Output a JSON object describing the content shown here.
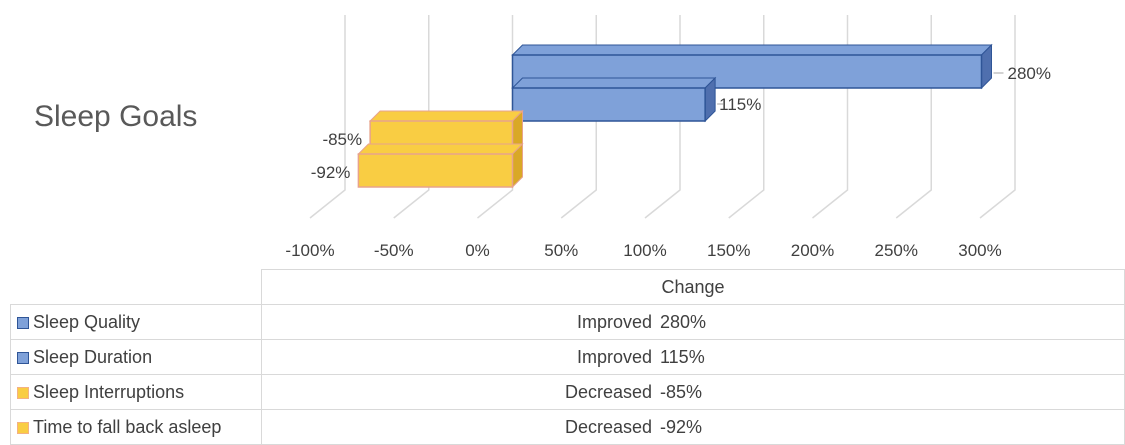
{
  "title": "Sleep Goals",
  "chart_data": {
    "type": "bar",
    "orientation": "horizontal",
    "style": "3d-clustered",
    "categories": [
      "Sleep Quality",
      "Sleep Duration",
      "Sleep Interruptions",
      "Time to fall back asleep"
    ],
    "values": [
      280,
      115,
      -85,
      -92
    ],
    "data_labels": [
      "280%",
      "115%",
      "-85%",
      "-92%"
    ],
    "status": [
      "Improved",
      "Improved",
      "Decreased",
      "Decreased"
    ],
    "colors": [
      "#7fa1d9",
      "#7fa1d9",
      "#f9cd43",
      "#f9cd43"
    ],
    "x_ticks": [
      "-100%",
      "-50%",
      "0%",
      "50%",
      "100%",
      "150%",
      "200%",
      "250%",
      "300%"
    ],
    "xlim": [
      -100,
      300
    ],
    "grid": true,
    "legend": "data-table",
    "table_header": "Change"
  }
}
